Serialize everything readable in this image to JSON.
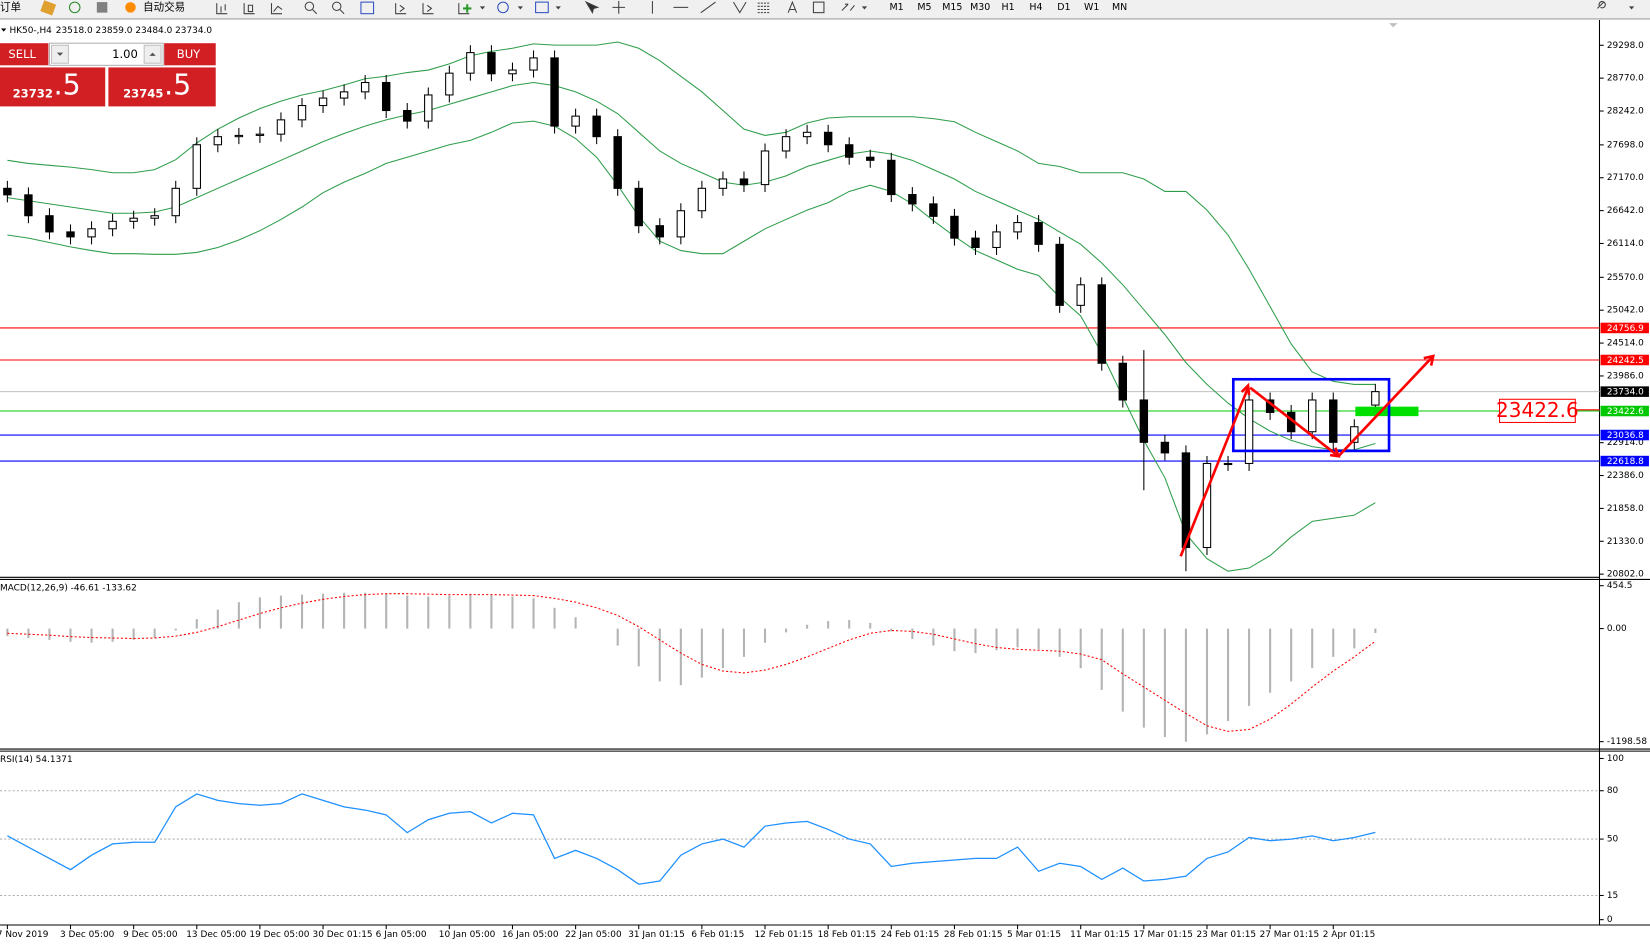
{
  "toolbar": {
    "order": "订单",
    "auto_trading": "自动交易",
    "timeframes": [
      "M1",
      "M5",
      "M15",
      "M30",
      "H1",
      "H4",
      "D1",
      "W1",
      "MN"
    ]
  },
  "trade_panel": {
    "sell": "SELL",
    "lot": "1.00",
    "buy": "BUY",
    "sell_price": "23732",
    "sell_pips": ".5",
    "buy_price": "23745",
    "buy_pips": ".5"
  },
  "chart_data": [
    {
      "type": "candlestick",
      "title": "HK50-,H4",
      "subtitle": "23518.0 23859.0 23484.0 23734.0",
      "categories": [
        "7 Nov 2019",
        null,
        null,
        "3 Dec 05:00",
        null,
        null,
        "9 Dec 05:00",
        null,
        null,
        "13 Dec 05:00",
        null,
        null,
        "19 Dec 05:00",
        null,
        null,
        "30 Dec 01:15",
        null,
        null,
        "6 Jan 05:00",
        null,
        null,
        "10 Jan 05:00",
        null,
        null,
        "16 Jan 05:00",
        null,
        null,
        "22 Jan 05:00",
        null,
        null,
        "31 Jan 01:15",
        null,
        null,
        "6 Feb 01:15",
        null,
        null,
        "12 Feb 01:15",
        null,
        null,
        "18 Feb 01:15",
        null,
        null,
        "24 Feb 01:15",
        null,
        null,
        "28 Feb 01:15",
        null,
        null,
        "5 Mar 01:15",
        null,
        null,
        "11 Mar 01:15",
        null,
        null,
        "17 Mar 01:15",
        null,
        null,
        "23 Mar 01:15",
        null,
        null,
        "27 Mar 01:15",
        null,
        null,
        "2 Apr 01:15",
        null,
        null
      ],
      "open": [
        27000,
        26895,
        26560,
        26300,
        26220,
        26350,
        26470,
        26520,
        26560,
        27000,
        27700,
        27830,
        27850,
        27870,
        28100,
        28330,
        28450,
        28550,
        28700,
        28250,
        28080,
        28500,
        28850,
        29180,
        28840,
        28900,
        29095,
        28000,
        28160,
        27830,
        27000,
        26400,
        26220,
        26640,
        27000,
        27150,
        27060,
        27600,
        27830,
        27900,
        27700,
        27500,
        27450,
        26900,
        26750,
        26550,
        26200,
        26050,
        26300,
        26450,
        26100,
        25120,
        25450,
        24190,
        23600,
        22920,
        22750,
        21230,
        22580,
        22580,
        23600,
        23400,
        23090,
        23600,
        22920,
        23518
      ],
      "high": [
        27120,
        27015,
        26680,
        26420,
        26470,
        26590,
        26640,
        26680,
        27120,
        27820,
        27950,
        27970,
        27990,
        28220,
        28450,
        28570,
        28670,
        28820,
        28820,
        28370,
        28620,
        28970,
        29300,
        29300,
        29020,
        29215,
        29215,
        28280,
        28280,
        27950,
        27120,
        26520,
        26760,
        27120,
        27270,
        27270,
        27720,
        27950,
        28020,
        28020,
        27820,
        27620,
        27570,
        27020,
        26870,
        26670,
        26320,
        26420,
        26570,
        26570,
        26220,
        25570,
        25570,
        24310,
        24400,
        23040,
        22870,
        22700,
        22700,
        23720,
        23720,
        23520,
        23720,
        23720,
        23290,
        23859
      ],
      "low": [
        26775,
        26440,
        26180,
        26100,
        26100,
        26230,
        26350,
        26400,
        26440,
        26880,
        27580,
        27710,
        27730,
        27750,
        27980,
        28210,
        28330,
        28430,
        28130,
        27960,
        27960,
        28380,
        28730,
        28720,
        28720,
        28780,
        27880,
        27880,
        27710,
        26880,
        26280,
        26100,
        26100,
        26520,
        26880,
        26940,
        26940,
        27480,
        27710,
        27580,
        27380,
        27330,
        26780,
        26630,
        26430,
        26080,
        25930,
        25930,
        26180,
        25980,
        25000,
        25000,
        24070,
        23480,
        22150,
        22630,
        20850,
        21110,
        22460,
        22460,
        23280,
        22970,
        22970,
        22800,
        22800,
        23484
      ],
      "close": [
        26895,
        26560,
        26300,
        26220,
        26350,
        26470,
        26520,
        26560,
        27000,
        27700,
        27830,
        27850,
        27870,
        28100,
        28330,
        28450,
        28550,
        28700,
        28250,
        28080,
        28500,
        28850,
        29180,
        28840,
        28900,
        29095,
        28000,
        28160,
        27830,
        27000,
        26400,
        26220,
        26640,
        27000,
        27150,
        27060,
        27600,
        27830,
        27900,
        27700,
        27500,
        27450,
        26900,
        26750,
        26550,
        26200,
        26050,
        26300,
        26450,
        26100,
        25120,
        25450,
        24190,
        23600,
        22920,
        22750,
        21230,
        22580,
        22580,
        23600,
        23400,
        23090,
        23600,
        22920,
        23170,
        23734
      ],
      "up_color": "#ffffff",
      "down_color": "#000000",
      "bands": {
        "color": "#2e9e4a",
        "upper": [
          27450,
          27400,
          27370,
          27340,
          27300,
          27250,
          27250,
          27300,
          27460,
          27730,
          27950,
          28130,
          28280,
          28400,
          28500,
          28570,
          28660,
          28760,
          28800,
          28860,
          28900,
          29000,
          29130,
          29200,
          29250,
          29320,
          29300,
          29300,
          29300,
          29350,
          29250,
          29050,
          28800,
          28550,
          28250,
          27950,
          27850,
          27900,
          28050,
          28130,
          28150,
          28150,
          28150,
          28150,
          28120,
          28070,
          27900,
          27750,
          27600,
          27400,
          27350,
          27250,
          27250,
          27250,
          27150,
          26950,
          26950,
          26650,
          26250,
          25700,
          25100,
          24500,
          24050,
          23900,
          23850,
          23850
        ],
        "middle": [
          26850,
          26800,
          26750,
          26700,
          26650,
          26600,
          26600,
          26620,
          26700,
          26850,
          27000,
          27150,
          27300,
          27450,
          27600,
          27750,
          27880,
          28000,
          28100,
          28180,
          28250,
          28350,
          28450,
          28550,
          28650,
          28700,
          28650,
          28550,
          28400,
          28200,
          27900,
          27600,
          27400,
          27250,
          27100,
          27050,
          27100,
          27200,
          27350,
          27450,
          27550,
          27600,
          27550,
          27450,
          27300,
          27150,
          26950,
          26800,
          26650,
          26500,
          26300,
          26100,
          25800,
          25450,
          25050,
          24650,
          24200,
          23850,
          23550,
          23300,
          23100,
          22950,
          22850,
          22800,
          22800,
          22900
        ],
        "lower": [
          26250,
          26200,
          26130,
          26060,
          26000,
          25950,
          25950,
          25940,
          25940,
          25970,
          26050,
          26170,
          26320,
          26500,
          26700,
          26930,
          27100,
          27240,
          27400,
          27500,
          27600,
          27700,
          27770,
          27900,
          28050,
          28080,
          28000,
          27800,
          27500,
          27050,
          26550,
          26150,
          26000,
          25950,
          25950,
          26150,
          26350,
          26500,
          26650,
          26770,
          26950,
          27050,
          26950,
          26750,
          26480,
          26230,
          26000,
          25850,
          25700,
          25600,
          25250,
          24950,
          24350,
          23650,
          22950,
          22350,
          21450,
          21050,
          20850,
          20900,
          21100,
          21400,
          21650,
          21700,
          21750,
          21950
        ]
      },
      "ylim": [
        20768,
        29653
      ],
      "yticks": [
        {
          "value": 29298,
          "label": "29298.0"
        },
        {
          "value": 28770,
          "label": "28770.0"
        },
        {
          "value": 28242,
          "label": "28242.0"
        },
        {
          "value": 27698,
          "label": "27698.0"
        },
        {
          "value": 27170,
          "label": "27170.0"
        },
        {
          "value": 26642,
          "label": "26642.0"
        },
        {
          "value": 26114,
          "label": "26114.0"
        },
        {
          "value": 25570,
          "label": "25570.0"
        },
        {
          "value": 25042,
          "label": "25042.0"
        },
        {
          "value": 24514,
          "label": "24514.0"
        },
        {
          "value": 23986,
          "label": "23986.0"
        },
        {
          "value": 22914,
          "label": "22914.0"
        },
        {
          "value": 22386,
          "label": "22386.0"
        },
        {
          "value": 21858,
          "label": "21858.0"
        },
        {
          "value": 21330,
          "label": "21330.0"
        },
        {
          "value": 20802,
          "label": "20802.0"
        }
      ],
      "price_lines": [
        {
          "value": 24756.9,
          "color": "#ff0000",
          "box": "#ff0000"
        },
        {
          "value": 24242.5,
          "color": "#ff0000",
          "box": "#ff0000"
        },
        {
          "value": 23734,
          "label": "23734.0",
          "color": "#c0c0c0",
          "box": "#000000"
        },
        {
          "value": 23422.6,
          "color": "#00c800",
          "box": "#00c800"
        },
        {
          "value": 23036.8,
          "color": "#0000ff",
          "box": "#0000ff"
        },
        {
          "value": 22618.8,
          "color": "#0000ff",
          "box": "#0000ff"
        }
      ]
    },
    {
      "type": "macd",
      "title": "MACD(12,26,9) -46.61 -133.62",
      "values": [
        -80,
        -100,
        -120,
        -140,
        -150,
        -140,
        -120,
        -100,
        -20,
        100,
        200,
        280,
        330,
        350,
        360,
        370,
        380,
        380,
        370,
        350,
        340,
        350,
        370,
        360,
        340,
        320,
        220,
        120,
        0,
        -180,
        -400,
        -560,
        -600,
        -520,
        -420,
        -300,
        -150,
        -40,
        40,
        80,
        90,
        60,
        -30,
        -110,
        -180,
        -240,
        -260,
        -230,
        -200,
        -220,
        -300,
        -420,
        -650,
        -880,
        -1050,
        -1150,
        -1200,
        -1120,
        -980,
        -820,
        -680,
        -560,
        -420,
        -300,
        -210,
        -46.61
      ],
      "color": "#b4b4b4",
      "signal": [
        -50,
        -60,
        -70,
        -85,
        -95,
        -100,
        -105,
        -100,
        -80,
        -40,
        20,
        90,
        160,
        220,
        270,
        310,
        340,
        360,
        370,
        370,
        365,
        360,
        360,
        360,
        355,
        350,
        320,
        280,
        220,
        140,
        20,
        -120,
        -260,
        -380,
        -450,
        -470,
        -440,
        -380,
        -300,
        -210,
        -120,
        -50,
        -20,
        -30,
        -60,
        -110,
        -160,
        -200,
        -220,
        -230,
        -240,
        -270,
        -330,
        -480,
        -620,
        -760,
        -900,
        -1030,
        -1090,
        -1070,
        -960,
        -800,
        -620,
        -450,
        -300,
        -133.62
      ],
      "signal_color": "#ff0000",
      "ylim": [
        -1266,
        521
      ],
      "yticks": [
        454.5,
        {
          "value": 0,
          "label": "0.00"
        },
        -1198.58
      ]
    },
    {
      "type": "line",
      "title": "RSI(14) 54.1371",
      "values": [
        52,
        45,
        38,
        31,
        40,
        47,
        48,
        48,
        70,
        78,
        74,
        72,
        71,
        72,
        78,
        74,
        70,
        68,
        65,
        54,
        62,
        66,
        67,
        60,
        66,
        65,
        38,
        43,
        38,
        31,
        22,
        24,
        40,
        47,
        50,
        45,
        58,
        60,
        61,
        56,
        50,
        47,
        33,
        35,
        36,
        37,
        38,
        38,
        45,
        30,
        35,
        33,
        25,
        32,
        24,
        25,
        27,
        38,
        42,
        51,
        49,
        50,
        52,
        49,
        51,
        54.1371
      ],
      "color": "#1e90ff",
      "ylim": [
        -3.3,
        103.9
      ],
      "yticks": [
        0,
        15,
        50,
        80,
        100
      ],
      "levels": [
        80,
        50,
        15
      ]
    }
  ]
}
